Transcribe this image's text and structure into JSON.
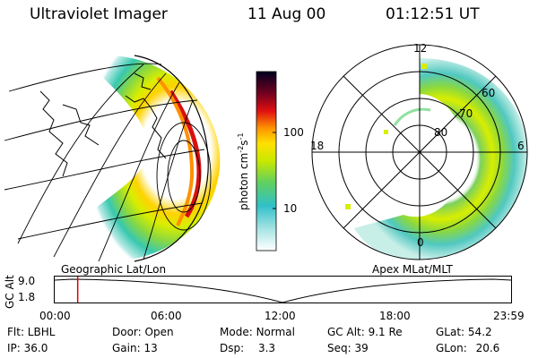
{
  "header": {
    "instrument": "Ultraviolet Imager",
    "date": "11 Aug 00",
    "time": "01:12:51 UT"
  },
  "left_panel": {
    "caption": "Geographic Lat/Lon"
  },
  "right_panel": {
    "caption": "Apex MLat/MLT",
    "mlt_labels": {
      "top": "12",
      "left": "18",
      "right": "6",
      "bottom": "0"
    },
    "lat_labels": [
      "60",
      "70",
      "80"
    ]
  },
  "colorbar": {
    "unit_label": "photon cm",
    "unit_sup1": "-2",
    "unit_mid": "s",
    "unit_sup2": "-1",
    "ticks": [
      "100",
      "10"
    ],
    "scale": "log"
  },
  "altitude_plot": {
    "ylabel": "GC Alt",
    "yticks": [
      "9.0",
      "1.8"
    ],
    "xticks": [
      "00:00",
      "06:00",
      "12:00",
      "18:00",
      "23:59"
    ],
    "marker_time_hours": 1.21,
    "marker_color": "#e00000"
  },
  "info": {
    "flt": "Flt: LBHL",
    "door": "Door: Open",
    "mode_label": "Mode:",
    "mode_value": "Normal",
    "gc_alt": "GC Alt: 9.1 Re",
    "glat_label": "GLat:",
    "glat_value": "54.2",
    "ip": "IP: 36.0",
    "gain": "Gain: 13",
    "dsp_label": "Dsp:",
    "dsp_value": "3.3",
    "seq": "Seq: 39",
    "glon_label": "GLon:",
    "glon_value": "20.6"
  }
}
